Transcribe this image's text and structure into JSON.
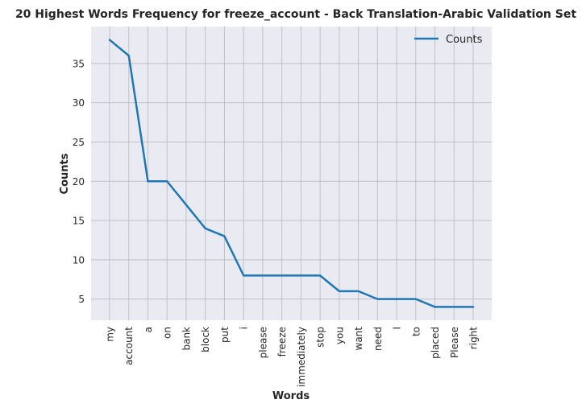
{
  "chart_data": {
    "type": "line",
    "title": "20 Highest Words Frequency for freeze_account - Back Translation-Arabic Validation Set",
    "xlabel": "Words",
    "ylabel": "Counts",
    "categories": [
      "my",
      "account",
      "a",
      "on",
      "bank",
      "block",
      "put",
      "i",
      "please",
      "freeze",
      "immediately",
      "stop",
      "you",
      "want",
      "need",
      "I",
      "to",
      "placed",
      "Please",
      "right"
    ],
    "series": [
      {
        "name": "Counts",
        "values": [
          38,
          36,
          20,
          20,
          17,
          14,
          13,
          8,
          8,
          8,
          8,
          8,
          6,
          6,
          5,
          5,
          5,
          4,
          4,
          4
        ],
        "color": "#1f77b4"
      }
    ],
    "ylim": [
      2.3,
      39.7
    ],
    "yticks": [
      5,
      10,
      15,
      20,
      25,
      30,
      35
    ],
    "grid": true,
    "legend_position": "top-right",
    "background_color": "#eaeaf2",
    "grid_color": "#c0c0c8"
  }
}
